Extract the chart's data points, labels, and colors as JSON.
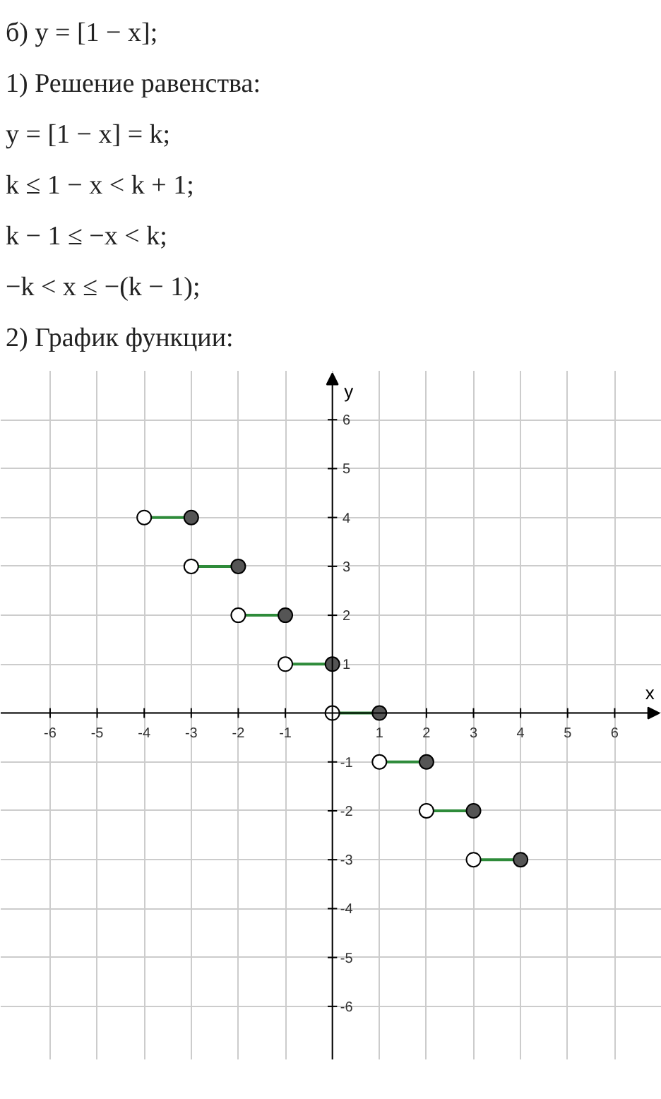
{
  "chart_data": {
    "type": "line",
    "xlabel": "x",
    "ylabel": "y",
    "annotations": [
      "б) y = [1 − x];",
      "1) Решение равенства:",
      "y = [1 − x] = k;",
      "k ≤ 1 − x < k + 1;",
      "k − 1 ≤ −x < k;",
      "−k < x ≤ −(k − 1);",
      "2) График функции:"
    ],
    "xlim": [
      -7.05,
      7
    ],
    "ylim": [
      -7.1,
      7
    ],
    "xticks": [
      -6,
      -5,
      -4,
      -3,
      -2,
      -1,
      {
        "value": 0,
        "label": null
      },
      1,
      2,
      3,
      4,
      5,
      6
    ],
    "yticks": [
      -6,
      -5,
      -4,
      -3,
      -2,
      -1,
      {
        "value": 0,
        "label": null
      },
      1,
      2,
      3,
      4,
      5,
      6
    ],
    "grid": true,
    "series": [
      {
        "x": [
          -4,
          -3
        ],
        "values": [
          4,
          4
        ],
        "color": "#2e8b3a"
      },
      {
        "x": [
          -3,
          -2
        ],
        "values": [
          3,
          3
        ],
        "color": "#2e8b3a"
      },
      {
        "x": [
          -2,
          -1
        ],
        "values": [
          2,
          2
        ],
        "color": "#2e8b3a"
      },
      {
        "x": [
          -1,
          0
        ],
        "values": [
          1,
          1
        ],
        "color": "#2e8b3a"
      },
      {
        "x": [
          0,
          1
        ],
        "values": [
          0,
          0
        ],
        "color": "#2e8b3a"
      },
      {
        "x": [
          1,
          2
        ],
        "values": [
          -1,
          -1
        ],
        "color": "#2e8b3a"
      },
      {
        "x": [
          2,
          3
        ],
        "values": [
          -2,
          -2
        ],
        "color": "#2e8b3a"
      },
      {
        "x": [
          3,
          4
        ],
        "values": [
          -3,
          -3
        ],
        "color": "#2e8b3a"
      },
      {
        "type": "scatter",
        "marker": "circle",
        "color": "#ffffff",
        "x": [
          -4,
          -3,
          -2,
          -1,
          0,
          1,
          2,
          3
        ],
        "values": [
          4,
          3,
          2,
          1,
          0,
          -1,
          -2,
          -3
        ]
      },
      {
        "type": "scatter",
        "marker": "circle",
        "color": "#555555",
        "x": [
          -3,
          -2,
          -1,
          0,
          1,
          2,
          3,
          4
        ],
        "values": [
          4,
          3,
          2,
          1,
          0,
          -1,
          -2,
          -3
        ]
      }
    ]
  }
}
